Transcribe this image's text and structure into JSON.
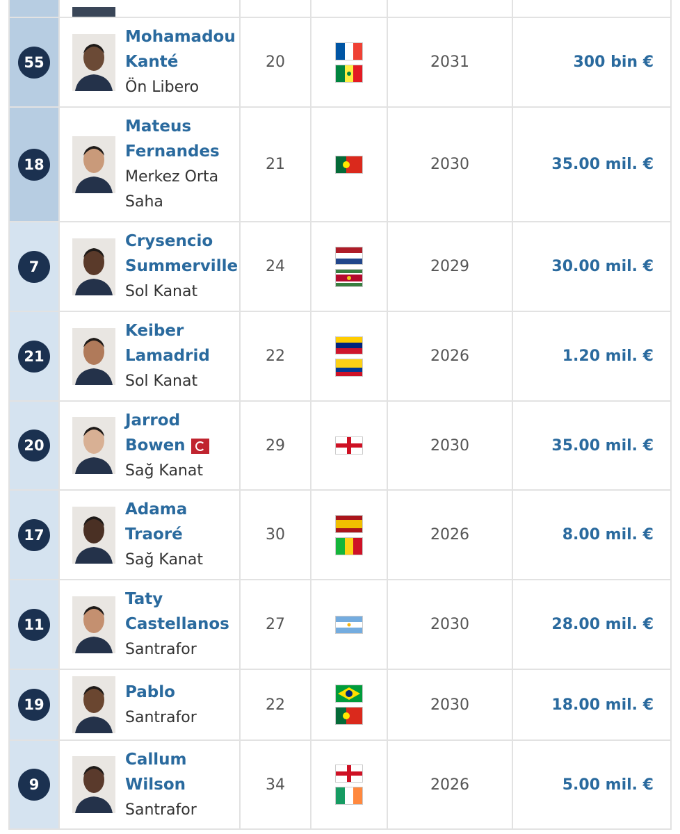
{
  "rows": [
    {
      "number": "55",
      "name": "Mohamadou Kanté",
      "position": "Ön Libero",
      "age": "20",
      "contract": "2031",
      "value": "300 bin €"
    },
    {
      "number": "18",
      "name": "Mateus Fernandes",
      "position": "Merkez Orta Saha",
      "age": "21",
      "contract": "2030",
      "value": "35.00 mil. €"
    },
    {
      "number": "7",
      "name": "Crysencio Summerville",
      "position": "Sol Kanat",
      "age": "24",
      "contract": "2029",
      "value": "30.00 mil. €"
    },
    {
      "number": "21",
      "name": "Keiber Lamadrid",
      "position": "Sol Kanat",
      "age": "22",
      "contract": "2026",
      "value": "1.20 mil. €"
    },
    {
      "number": "20",
      "name": "Jarrod Bowen",
      "position": "Sağ Kanat",
      "age": "29",
      "contract": "2030",
      "value": "35.00 mil. €"
    },
    {
      "number": "17",
      "name": "Adama Traoré",
      "position": "Sağ Kanat",
      "age": "30",
      "contract": "2026",
      "value": "8.00 mil. €"
    },
    {
      "number": "11",
      "name": "Taty Castellanos",
      "position": "Santrafor",
      "age": "27",
      "contract": "2030",
      "value": "28.00 mil. €"
    },
    {
      "number": "19",
      "name": "Pablo",
      "position": "Santrafor",
      "age": "22",
      "contract": "2030",
      "value": "18.00 mil. €"
    },
    {
      "number": "9",
      "name": "Callum Wilson",
      "position": "Santrafor",
      "age": "34",
      "contract": "2026",
      "value": "5.00 mil. €"
    }
  ]
}
